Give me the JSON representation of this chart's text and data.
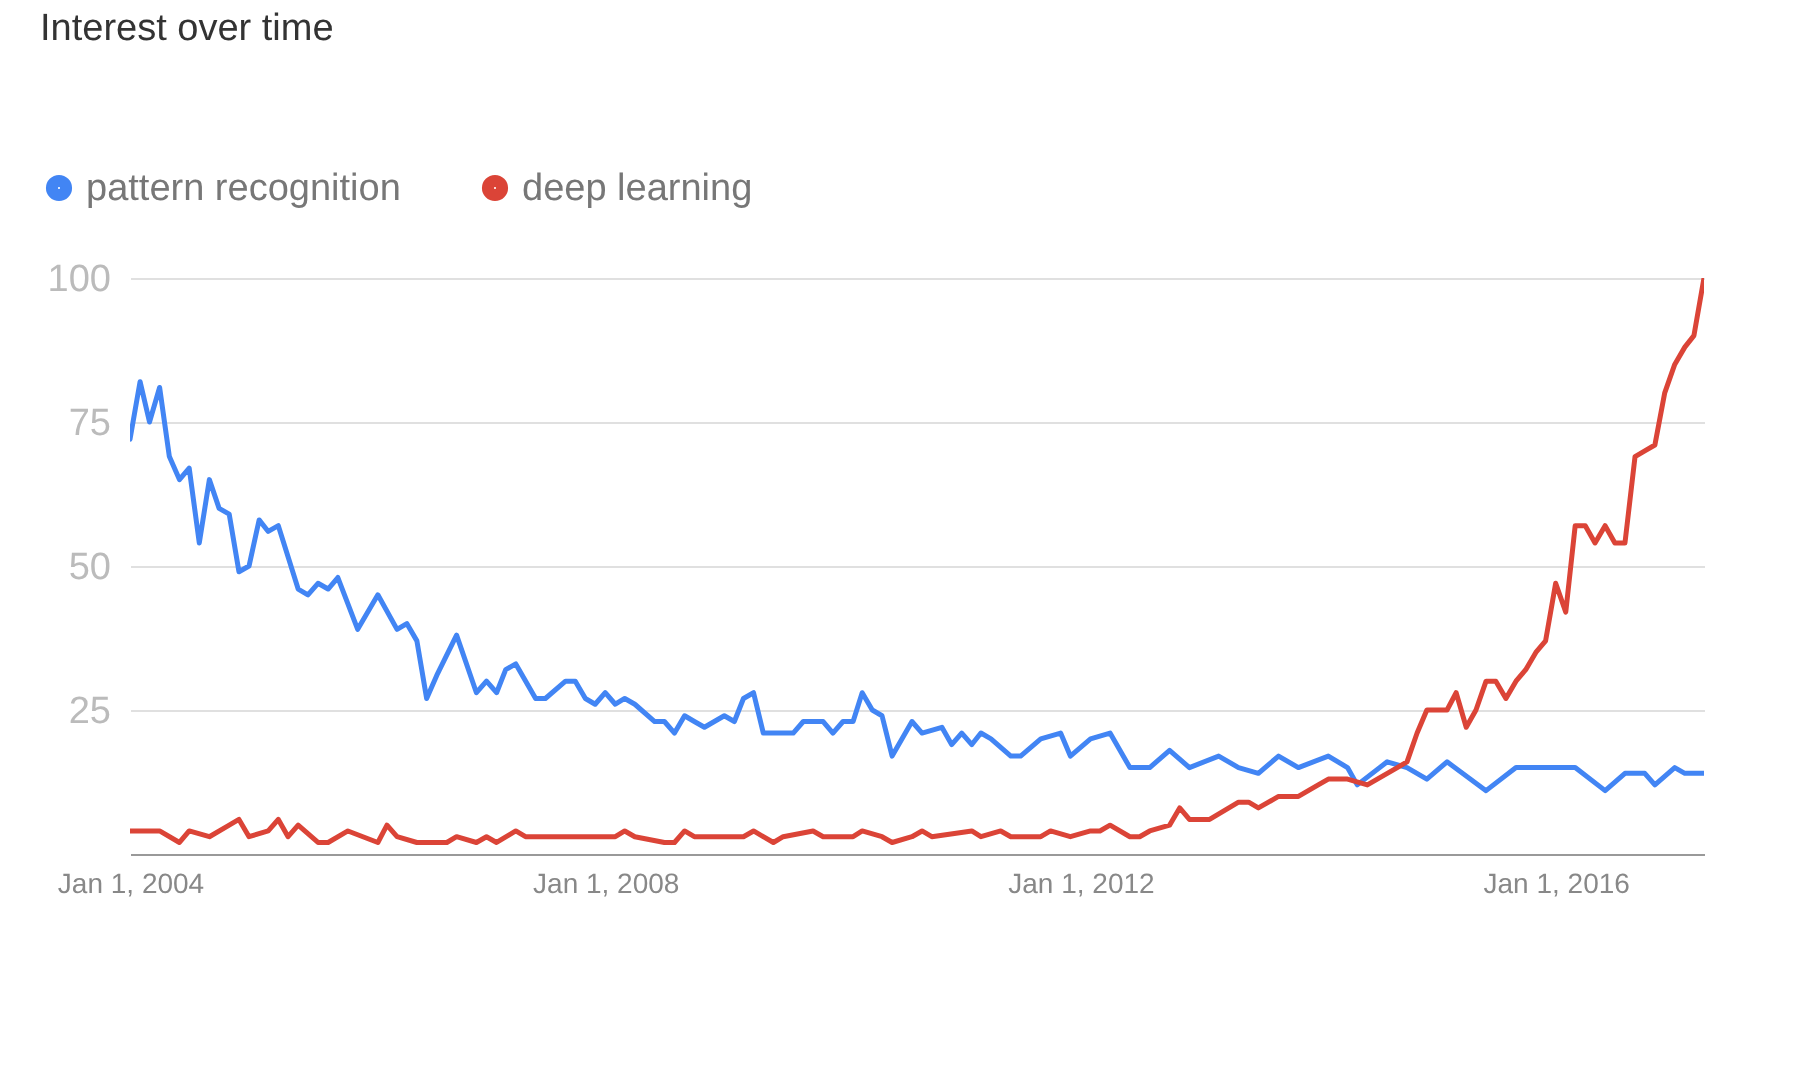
{
  "chart_data": {
    "type": "line",
    "title": "Interest over time",
    "legend": "top left",
    "grid": "y",
    "marker": "none",
    "line_style": "solid",
    "xlim": [
      "2004-01",
      "2017-04"
    ],
    "xticks": [
      {
        "value": "2004-01-01",
        "label": "Jan 1, 2004"
      },
      {
        "value": "2008-01-01",
        "label": "Jan 1, 2008"
      },
      {
        "value": "2012-01-01",
        "label": "Jan 1, 2012"
      },
      {
        "value": "2016-01-01",
        "label": "Jan 1, 2016"
      }
    ],
    "ylim": [
      0,
      100
    ],
    "yticks": [
      25,
      50,
      75,
      100
    ],
    "series": [
      {
        "name": "pattern recognition",
        "color": "#4285f4",
        "x": [
          "2004-01",
          "2004-02",
          "2004-03",
          "2004-04",
          "2004-05",
          "2004-06",
          "2004-07",
          "2004-08",
          "2004-09",
          "2004-10",
          "2004-11",
          "2004-12",
          "2005-01",
          "2005-02",
          "2005-03",
          "2005-04",
          "2005-06",
          "2005-07",
          "2005-08",
          "2005-09",
          "2005-10",
          "2005-12",
          "2006-02",
          "2006-04",
          "2006-05",
          "2006-06",
          "2006-07",
          "2006-08",
          "2006-10",
          "2006-12",
          "2007-01",
          "2007-02",
          "2007-03",
          "2007-04",
          "2007-06",
          "2007-07",
          "2007-09",
          "2007-10",
          "2007-11",
          "2007-12",
          "2008-01",
          "2008-02",
          "2008-03",
          "2008-04",
          "2008-06",
          "2008-07",
          "2008-08",
          "2008-09",
          "2008-10",
          "2008-11",
          "2009-01",
          "2009-02",
          "2009-03",
          "2009-04",
          "2009-05",
          "2009-06",
          "2009-08",
          "2009-09",
          "2009-11",
          "2009-12",
          "2010-01",
          "2010-02",
          "2010-03",
          "2010-04",
          "2010-05",
          "2010-06",
          "2010-08",
          "2010-09",
          "2010-11",
          "2010-12",
          "2011-01",
          "2011-02",
          "2011-03",
          "2011-04",
          "2011-06",
          "2011-07",
          "2011-09",
          "2011-11",
          "2011-12",
          "2012-02",
          "2012-04",
          "2012-06",
          "2012-07",
          "2012-08",
          "2012-10",
          "2012-12",
          "2013-03",
          "2013-05",
          "2013-07",
          "2013-09",
          "2013-11",
          "2014-02",
          "2014-04",
          "2014-05",
          "2014-08",
          "2014-10",
          "2014-12",
          "2015-02",
          "2015-06",
          "2015-09",
          "2015-12",
          "2016-03",
          "2016-06",
          "2016-08",
          "2016-10",
          "2016-11",
          "2017-01",
          "2017-02",
          "2017-04"
        ],
        "values": [
          72,
          82,
          75,
          81,
          69,
          65,
          67,
          54,
          65,
          60,
          59,
          49,
          50,
          58,
          56,
          57,
          46,
          45,
          47,
          46,
          48,
          39,
          45,
          39,
          40,
          37,
          27,
          31,
          38,
          28,
          30,
          28,
          32,
          33,
          27,
          27,
          30,
          30,
          27,
          26,
          28,
          26,
          27,
          26,
          23,
          23,
          21,
          24,
          23,
          22,
          24,
          23,
          27,
          28,
          21,
          21,
          21,
          23,
          23,
          21,
          23,
          23,
          28,
          25,
          24,
          17,
          23,
          21,
          22,
          19,
          21,
          19,
          21,
          20,
          17,
          17,
          20,
          21,
          17,
          20,
          21,
          15,
          15,
          15,
          18,
          15,
          17,
          15,
          14,
          17,
          15,
          17,
          15,
          12,
          16,
          15,
          13,
          16,
          11,
          15,
          15,
          15,
          11,
          14,
          14,
          12,
          15,
          14,
          14
        ]
      },
      {
        "name": "deep learning",
        "color": "#db4437",
        "x": [
          "2004-01",
          "2004-04",
          "2004-06",
          "2004-07",
          "2004-09",
          "2004-11",
          "2004-12",
          "2005-01",
          "2005-03",
          "2005-04",
          "2005-05",
          "2005-06",
          "2005-08",
          "2005-09",
          "2005-11",
          "2006-02",
          "2006-03",
          "2006-04",
          "2006-06",
          "2006-09",
          "2006-10",
          "2006-12",
          "2007-01",
          "2007-02",
          "2007-04",
          "2007-05",
          "2007-06",
          "2008-02",
          "2008-03",
          "2008-04",
          "2008-07",
          "2008-08",
          "2008-09",
          "2008-10",
          "2009-03",
          "2009-04",
          "2009-06",
          "2009-07",
          "2009-10",
          "2009-11",
          "2010-02",
          "2010-03",
          "2010-05",
          "2010-06",
          "2010-08",
          "2010-09",
          "2010-10",
          "2011-02",
          "2011-03",
          "2011-05",
          "2011-06",
          "2011-09",
          "2011-10",
          "2011-12",
          "2012-02",
          "2012-03",
          "2012-04",
          "2012-06",
          "2012-07",
          "2012-08",
          "2012-10",
          "2012-11",
          "2012-12",
          "2013-02",
          "2013-05",
          "2013-06",
          "2013-07",
          "2013-09",
          "2013-11",
          "2014-01",
          "2014-02",
          "2014-04",
          "2014-06",
          "2014-09",
          "2014-10",
          "2014-11",
          "2014-12",
          "2015-02",
          "2015-03",
          "2015-04",
          "2015-05",
          "2015-06",
          "2015-07",
          "2015-08",
          "2015-09",
          "2015-10",
          "2015-11",
          "2015-12",
          "2016-01",
          "2016-02",
          "2016-03",
          "2016-04",
          "2016-05",
          "2016-06",
          "2016-07",
          "2016-08",
          "2016-09",
          "2016-10",
          "2016-11",
          "2016-12",
          "2017-01",
          "2017-02",
          "2017-03",
          "2017-04"
        ],
        "values": [
          4,
          4,
          2,
          4,
          3,
          5,
          6,
          3,
          4,
          6,
          3,
          5,
          2,
          2,
          4,
          2,
          5,
          3,
          2,
          2,
          3,
          2,
          3,
          2,
          4,
          3,
          3,
          3,
          4,
          3,
          2,
          2,
          4,
          3,
          3,
          4,
          2,
          3,
          4,
          3,
          3,
          4,
          3,
          2,
          3,
          4,
          3,
          4,
          3,
          4,
          3,
          3,
          4,
          3,
          4,
          4,
          5,
          3,
          3,
          4,
          5,
          8,
          6,
          6,
          9,
          9,
          8,
          10,
          10,
          12,
          13,
          13,
          12,
          15,
          16,
          21,
          25,
          25,
          28,
          22,
          25,
          30,
          30,
          27,
          30,
          32,
          35,
          37,
          47,
          42,
          57,
          57,
          54,
          57,
          54,
          54,
          69,
          70,
          71,
          80,
          85,
          88,
          90,
          100
        ]
      }
    ]
  }
}
